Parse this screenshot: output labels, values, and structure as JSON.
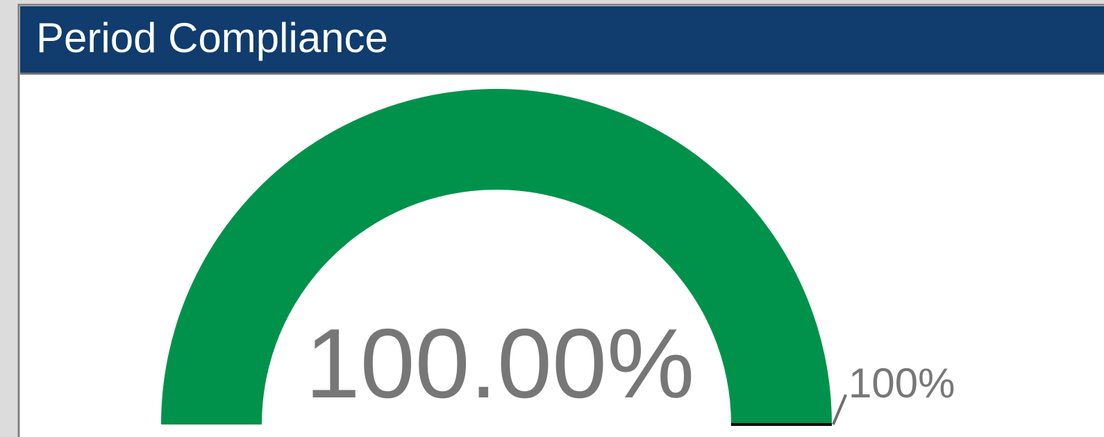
{
  "chart_data": {
    "type": "gauge",
    "title": "Period Compliance",
    "values": [
      100
    ],
    "value_labels": [
      "100.00%"
    ],
    "ylim": [
      0,
      100
    ],
    "target": 100,
    "target_label": "100%",
    "color": "#00924a"
  }
}
